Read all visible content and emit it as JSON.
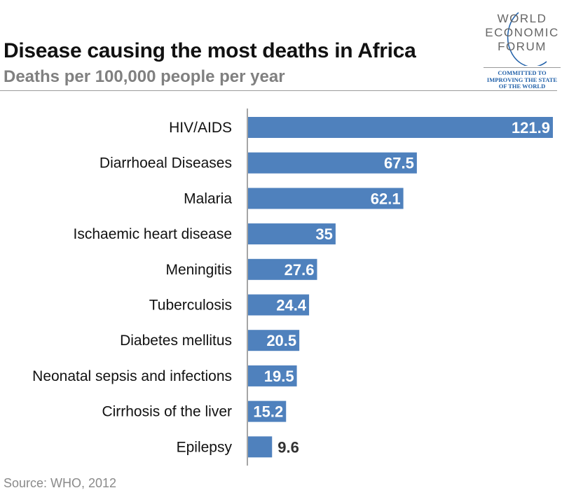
{
  "logo": {
    "lines": [
      "WORLD",
      "ECONOMIC",
      "FORUM"
    ],
    "tagline": [
      "COMMITTED TO",
      "IMPROVING THE STATE",
      "OF THE WORLD"
    ]
  },
  "source": "Source: WHO, 2012",
  "colors": {
    "bar": "#4f81bd",
    "label_inside": "#ffffff",
    "label_outside": "#333333"
  },
  "chart_data": {
    "type": "bar",
    "orientation": "horizontal",
    "title": "Disease causing the most deaths in Africa",
    "subtitle": "Deaths per 100,000 people per year",
    "categories": [
      "HIV/AIDS",
      "Diarrhoeal Diseases",
      "Malaria",
      "Ischaemic heart disease",
      "Meningitis",
      "Tuberculosis",
      "Diabetes mellitus",
      "Neonatal sepsis and infections",
      "Cirrhosis of the liver",
      "Epilepsy"
    ],
    "values": [
      121.9,
      67.5,
      62.1,
      35,
      27.6,
      24.4,
      20.5,
      19.5,
      15.2,
      9.6
    ],
    "labels": [
      "121.9",
      "67.5",
      "62.1",
      "35",
      "27.6",
      "24.4",
      "20.5",
      "19.5",
      "15.2",
      "9.6"
    ],
    "xlim": [
      0,
      121.9
    ],
    "grid": false
  }
}
